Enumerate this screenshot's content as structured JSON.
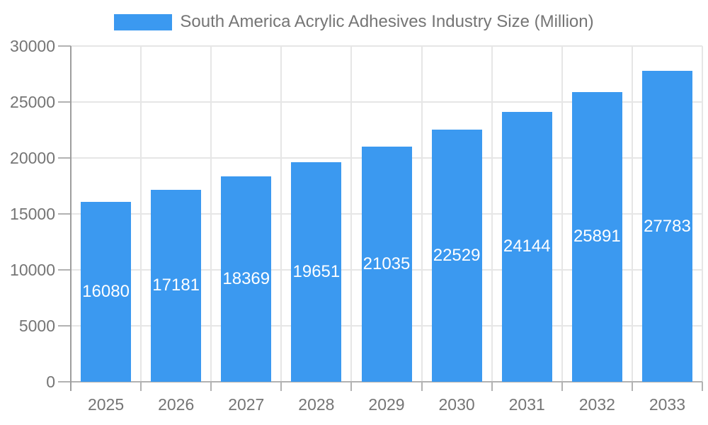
{
  "chart_data": {
    "type": "bar",
    "title": "South America Acrylic Adhesives Industry Size (Million)",
    "categories": [
      "2025",
      "2026",
      "2027",
      "2028",
      "2029",
      "2030",
      "2031",
      "2032",
      "2033"
    ],
    "values": [
      16080,
      17181,
      18369,
      19651,
      21035,
      22529,
      24144,
      25891,
      27783
    ],
    "value_labels": [
      "16080",
      "17181",
      "18369",
      "19651",
      "21035",
      "22529",
      "24144",
      "25891",
      "27783"
    ],
    "value_label_position": "inside-center",
    "xlabel": "",
    "ylabel": "",
    "ylim": [
      0,
      30000
    ],
    "y_tick_step": 5000,
    "y_tick_labels": [
      "0",
      "5000",
      "10000",
      "15000",
      "20000",
      "25000",
      "30000"
    ],
    "grid": true,
    "legend_position": "top-center",
    "colors": {
      "bar": "#3b99f0",
      "value_label_text": "#ffffff",
      "axis_text": "#757575",
      "title_text": "#757575",
      "gridline": "#e6e6e6",
      "y_axis_line": "#9e9e9e",
      "baseline": "#b2b2b2",
      "tick": "#b2b2b2",
      "background": "#ffffff"
    }
  }
}
